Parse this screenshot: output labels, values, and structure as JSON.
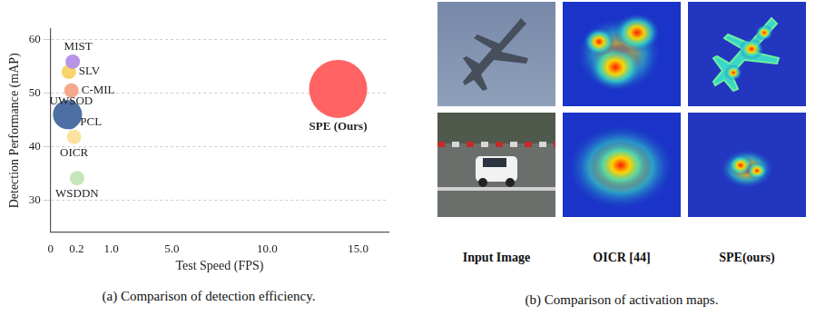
{
  "chart_data": {
    "type": "bubble",
    "x_label": "Test Speed (FPS)",
    "y_label": "Detection Performance (mAP)",
    "series": [
      {
        "name": "MIST",
        "color": "#b794e6",
        "x": [
          0.17
        ],
        "values": [
          55.9
        ],
        "sizes": [
          8
        ]
      },
      {
        "name": "SLV",
        "color": "#f7d56a",
        "x": [
          0.14
        ],
        "values": [
          54.0
        ],
        "sizes": [
          8
        ]
      },
      {
        "name": "C-MIL",
        "color": "#f5a98a",
        "x": [
          0.16
        ],
        "values": [
          50.5
        ],
        "sizes": [
          8
        ]
      },
      {
        "name": "UWSOD",
        "color": "#4d6fa3",
        "x": [
          0.13
        ],
        "values": [
          46.0
        ],
        "sizes": [
          16
        ]
      },
      {
        "name": "PCL",
        "color": "#5f86bf",
        "x": [
          0.15
        ],
        "values": [
          44.6
        ],
        "sizes": [
          8
        ]
      },
      {
        "name": "OICR",
        "color": "#fbe29e",
        "x": [
          0.18
        ],
        "values": [
          41.8
        ],
        "sizes": [
          8
        ]
      },
      {
        "name": "WSDDN",
        "color": "#c6e5b8",
        "x": [
          0.21
        ],
        "values": [
          34.1
        ],
        "sizes": [
          8
        ]
      },
      {
        "name": "SPE (Ours)",
        "color": "#ff6363",
        "x": [
          13.9
        ],
        "values": [
          50.8
        ],
        "sizes": [
          32
        ]
      }
    ],
    "xlim": [
      0,
      16.5
    ],
    "xticks": [
      0,
      0.2,
      {
        "value": 1,
        "label": "1.0"
      },
      {
        "value": 5,
        "label": "5.0"
      },
      {
        "value": 10,
        "label": "10.0"
      },
      {
        "value": 15,
        "label": "15.0"
      }
    ],
    "ylim": [
      24,
      62
    ],
    "yticks": [
      30,
      40,
      50,
      60
    ],
    "grid": true
  },
  "figure": {
    "captions": [
      "(a) Comparison of detection efficiency.",
      "(b) Comparison of activation maps."
    ],
    "activation_maps": {
      "columns": [
        "Input Image",
        "OICR [44]",
        "SPE(ours)"
      ]
    }
  }
}
